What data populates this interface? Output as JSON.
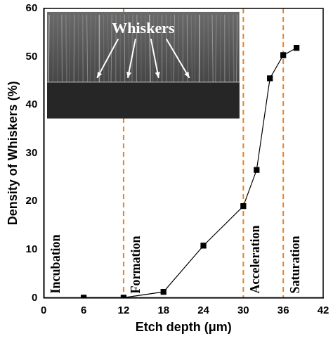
{
  "chart_data": {
    "type": "line",
    "x_label": "Etch depth (μm)",
    "y_label": "Density of Whiskers (%)",
    "annotation": "Whiskers",
    "phases": [
      "Incubation",
      "Formation",
      "Acceleration",
      "Saturation"
    ],
    "phase_boundaries": [
      12,
      30,
      36
    ],
    "x": [
      6,
      12,
      18,
      24,
      30,
      32,
      34,
      36,
      38
    ],
    "values": [
      0,
      0,
      1.2,
      10.8,
      19,
      26.5,
      45.5,
      50.3,
      51.8
    ],
    "color": "#000000",
    "marker": "square",
    "line_style": "solid",
    "xlim": [
      0,
      42
    ],
    "xticks": [
      0,
      6,
      12,
      18,
      24,
      30,
      36,
      42
    ],
    "ylim": [
      0,
      60
    ],
    "yticks": [
      0,
      10,
      20,
      30,
      40,
      50,
      60
    ],
    "grid": false
  }
}
